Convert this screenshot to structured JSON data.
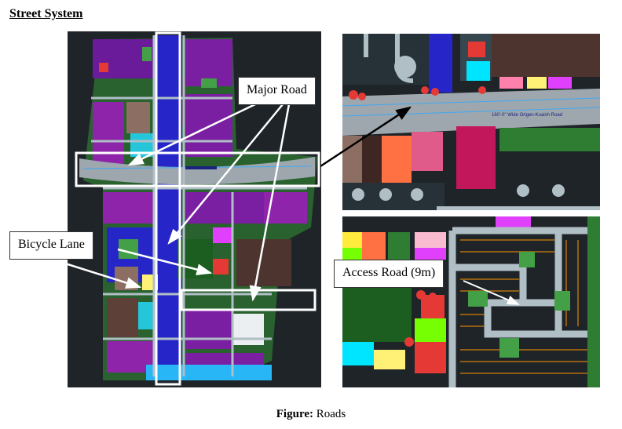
{
  "heading": "Street System",
  "callouts": {
    "major_road": "Major Road",
    "bicycle_lane": "Bicycle Lane",
    "access_road": "Access Road (9m)"
  },
  "road_label": "160'-0\" Wide Origen-Kuaish Road",
  "caption": {
    "prefix": "Figure:",
    "text": " Roads"
  },
  "colors": {
    "background_plan": "#1f2429",
    "road": "#9ea7ad",
    "highlight_box": "#ffffff",
    "pointer_arrow": "#000000"
  }
}
